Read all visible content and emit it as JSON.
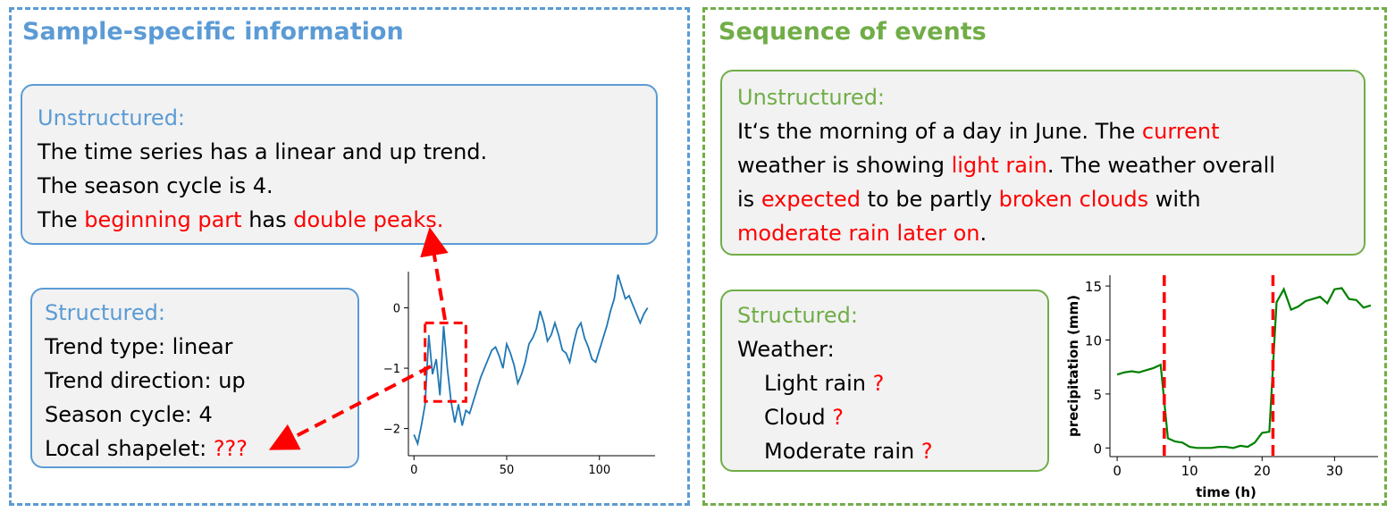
{
  "colors": {
    "blue": "#5b9bd5",
    "green": "#70ad47",
    "red": "#ff0000",
    "series_blue": "#1f77b4",
    "series_green": "#008000",
    "box_fill": "#f2f2f2"
  },
  "left": {
    "title": "Sample-specific information",
    "unstructured": {
      "heading": "Unstructured:",
      "line1": "The time series has a linear and up trend.",
      "line2": "The season cycle is 4.",
      "line3": {
        "t1": "The ",
        "r1": "beginning part",
        "t2": " has ",
        "r2": "double peaks."
      }
    },
    "structured": {
      "heading": "Structured:",
      "items": [
        "Trend type: linear",
        "Trend direction: up",
        "Season cycle: 4"
      ],
      "last": {
        "label": "Local shapelet: ",
        "value": "???"
      }
    }
  },
  "right": {
    "title": "Sequence of events",
    "unstructured": {
      "heading": "Unstructured:",
      "line1": {
        "t1": "It‘s the morning of a day in June. The ",
        "r1": "current"
      },
      "line2": {
        "t1": "weather is showing ",
        "r1": "light rain",
        "t2": ". The weather overall"
      },
      "line3": {
        "t1": "is ",
        "r1": "expected",
        "t2": " to be partly ",
        "r2": "broken clouds",
        "t3": " with"
      },
      "line4": {
        "r1": "moderate rain later on",
        "t1": "."
      }
    },
    "structured": {
      "heading": "Structured:",
      "label": "Weather:",
      "items": [
        "Light rain",
        "Cloud",
        "Moderate rain"
      ],
      "mark": "?"
    }
  },
  "chart_data": [
    {
      "type": "line",
      "title": "",
      "xlabel": "",
      "ylabel": "",
      "xlim": [
        -3,
        130
      ],
      "ylim": [
        -2.45,
        0.6
      ],
      "xticks": [
        0,
        50,
        100
      ],
      "yticks": [
        0,
        -1,
        -2
      ],
      "ytick_labels": [
        "0",
        "−1",
        "−2"
      ],
      "series": [
        {
          "x": [
            0,
            2,
            4,
            6,
            8,
            10,
            12,
            14,
            16,
            18,
            20,
            22,
            24,
            26,
            28,
            30,
            32,
            34,
            36,
            38,
            40,
            42,
            44,
            46,
            48,
            50,
            52,
            54,
            56,
            58,
            60,
            62,
            64,
            66,
            68,
            70,
            72,
            74,
            76,
            78,
            80,
            82,
            84,
            86,
            88,
            90,
            92,
            94,
            96,
            98,
            100,
            102,
            104,
            106,
            108,
            110,
            112,
            114,
            116,
            118,
            120,
            122,
            124,
            126
          ],
          "y": [
            -2.1,
            -2.25,
            -1.95,
            -1.6,
            -0.45,
            -1.1,
            -0.85,
            -1.45,
            -0.3,
            -1.0,
            -1.55,
            -1.9,
            -1.6,
            -1.95,
            -1.7,
            -1.75,
            -1.55,
            -1.35,
            -1.15,
            -1.0,
            -0.85,
            -0.7,
            -0.65,
            -0.8,
            -1.0,
            -0.6,
            -0.75,
            -0.95,
            -1.25,
            -1.1,
            -0.9,
            -0.6,
            -0.5,
            -0.35,
            -0.05,
            -0.25,
            -0.55,
            -0.45,
            -0.25,
            -0.45,
            -0.7,
            -0.75,
            -0.9,
            -0.6,
            -0.35,
            -0.25,
            -0.5,
            -0.65,
            -0.85,
            -0.9,
            -0.7,
            -0.5,
            -0.3,
            -0.05,
            0.15,
            0.55,
            0.35,
            0.15,
            0.2,
            0.05,
            -0.1,
            -0.25,
            -0.1,
            0.0
          ]
        }
      ],
      "highlight_box": {
        "x": [
          6,
          28
        ],
        "y": [
          -1.55,
          -0.25
        ]
      }
    },
    {
      "type": "line",
      "title": "",
      "xlabel": "time (h)",
      "ylabel": "precipitation (mm)",
      "xlim": [
        -1,
        36
      ],
      "ylim": [
        -0.8,
        16
      ],
      "xticks": [
        0,
        10,
        20,
        30
      ],
      "yticks": [
        0,
        5,
        10,
        15
      ],
      "series": [
        {
          "x": [
            0,
            1,
            2,
            3,
            4,
            5,
            6,
            7,
            8,
            9,
            10,
            11,
            12,
            13,
            14,
            15,
            16,
            17,
            18,
            19,
            20,
            21,
            22,
            23,
            24,
            25,
            26,
            27,
            28,
            29,
            30,
            31,
            32,
            33,
            34,
            35
          ],
          "y": [
            6.8,
            7.0,
            7.1,
            7.0,
            7.2,
            7.4,
            7.7,
            0.9,
            0.6,
            0.5,
            0.1,
            0.0,
            0.0,
            0.0,
            0.1,
            0.1,
            0.0,
            0.2,
            0.1,
            0.5,
            1.4,
            1.5,
            13.5,
            14.7,
            12.8,
            13.1,
            13.6,
            13.8,
            14.0,
            13.4,
            14.7,
            14.8,
            13.8,
            13.7,
            13.0,
            13.2
          ]
        }
      ],
      "event_lines_x": [
        6.5,
        21.5
      ]
    }
  ]
}
